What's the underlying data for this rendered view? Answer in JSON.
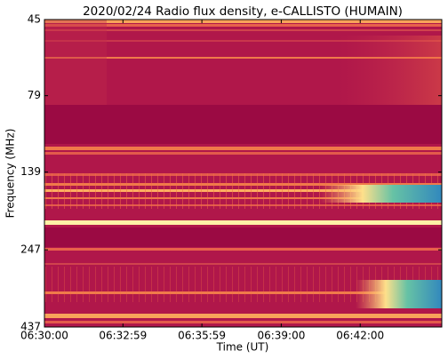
{
  "chart_data": {
    "type": "spectrogram",
    "title": "2020/02/24  Radio flux density, e-CALLISTO (HUMAIN)",
    "x_label": "Time (UT)",
    "y_label": "Frequency (MHz)",
    "xlim": [
      "06:30:00",
      "06:45:06"
    ],
    "xticks": [
      "06:30:00",
      "06:32:59",
      "06:35:59",
      "06:39:00",
      "06:42:00"
    ],
    "ylim": [
      45,
      437
    ],
    "yticks": [
      45,
      79,
      139,
      247,
      437
    ],
    "ylog": true,
    "yinverted": true
  }
}
